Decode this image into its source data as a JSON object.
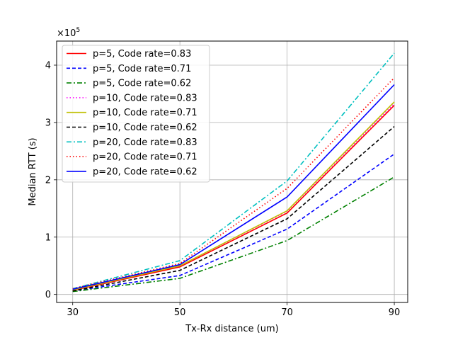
{
  "chart_data": {
    "type": "line",
    "title": "",
    "xlabel": "Tx-Rx distance (um)",
    "ylabel": "Median RTT (s)",
    "y_multiplier_base": "×10",
    "y_multiplier_exp": "5",
    "x": [
      30,
      50,
      70,
      90
    ],
    "x_ticks": [
      30,
      50,
      70,
      90
    ],
    "y_ticks": [
      0,
      1,
      2,
      3,
      4
    ],
    "xlim": [
      27,
      92.5
    ],
    "ylim": [
      -0.14,
      4.42
    ],
    "grid": true,
    "legend_position": "upper-left",
    "series": [
      {
        "name": "p=5, Code rate=0.83",
        "color": "#ff0000",
        "style": "solid",
        "values": [
          0.07,
          0.48,
          1.42,
          3.3
        ]
      },
      {
        "name": "p=5, Code rate=0.71",
        "color": "#0000ff",
        "style": "dashed",
        "values": [
          0.06,
          0.33,
          1.14,
          2.45
        ]
      },
      {
        "name": "p=5, Code rate=0.62",
        "color": "#008000",
        "style": "dashdot",
        "values": [
          0.05,
          0.28,
          0.94,
          2.05
        ]
      },
      {
        "name": "p=10, Code rate=0.83",
        "color": "#ff00ff",
        "style": "dotted",
        "values": [
          0.09,
          0.5,
          1.45,
          3.33
        ]
      },
      {
        "name": "p=10, Code rate=0.71",
        "color": "#bfbf00",
        "style": "solid",
        "values": [
          0.08,
          0.5,
          1.46,
          3.36
        ]
      },
      {
        "name": "p=10, Code rate=0.62",
        "color": "#000000",
        "style": "dashed",
        "values": [
          0.06,
          0.42,
          1.32,
          2.93
        ]
      },
      {
        "name": "p=20, Code rate=0.83",
        "color": "#00bfbf",
        "style": "dashdot",
        "values": [
          0.1,
          0.59,
          1.98,
          4.21
        ]
      },
      {
        "name": "p=20, Code rate=0.71",
        "color": "#ff0000",
        "style": "dotted",
        "values": [
          0.1,
          0.54,
          1.85,
          3.78
        ]
      },
      {
        "name": "p=20, Code rate=0.62",
        "color": "#0000ff",
        "style": "solid",
        "values": [
          0.09,
          0.52,
          1.7,
          3.66
        ]
      }
    ]
  }
}
